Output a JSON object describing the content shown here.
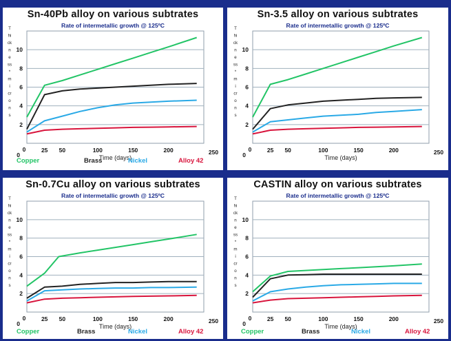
{
  "chart_data": [
    {
      "type": "line",
      "title": "Sn-40Pb alloy on various subtrates",
      "subtitle": "Rate of intermetallic growth @ 125ºC",
      "ylabel": "Thickness * microns",
      "xlabel": "Time (days)",
      "xlim": [
        0,
        250
      ],
      "ylim": [
        0,
        12
      ],
      "xticks": [
        "0",
        "25",
        "50",
        "100",
        "150",
        "200",
        "250"
      ],
      "yticks": [
        "0",
        "2",
        "4",
        "6",
        "8",
        "10"
      ],
      "grid": true,
      "series": [
        {
          "name": "Copper",
          "color": "#22c466",
          "x": [
            0,
            25,
            50,
            75,
            100,
            125,
            150,
            175,
            200,
            240
          ],
          "y": [
            2.8,
            6.2,
            6.7,
            7.3,
            7.9,
            8.5,
            9.1,
            9.7,
            10.3,
            11.3
          ]
        },
        {
          "name": "Brass",
          "color": "#222222",
          "x": [
            0,
            25,
            50,
            75,
            100,
            125,
            150,
            175,
            200,
            240
          ],
          "y": [
            1.5,
            5.2,
            5.6,
            5.8,
            5.9,
            6.0,
            6.1,
            6.2,
            6.3,
            6.4
          ]
        },
        {
          "name": "Nickel",
          "color": "#29a9e6",
          "x": [
            0,
            25,
            50,
            75,
            100,
            125,
            150,
            175,
            200,
            240
          ],
          "y": [
            1.2,
            2.4,
            2.9,
            3.4,
            3.8,
            4.1,
            4.3,
            4.4,
            4.5,
            4.6
          ]
        },
        {
          "name": "Alloy 42",
          "color": "#d8143c",
          "x": [
            0,
            25,
            50,
            75,
            100,
            125,
            150,
            175,
            200,
            240
          ],
          "y": [
            1.0,
            1.4,
            1.5,
            1.55,
            1.6,
            1.65,
            1.7,
            1.72,
            1.75,
            1.8
          ]
        }
      ]
    },
    {
      "type": "line",
      "title": "Sn-3.5 alloy on various subtrates",
      "subtitle": "Rate of intermetallic growth @ 125ºC",
      "ylabel": "Thickness * microns",
      "xlabel": "Time (days)",
      "xlim": [
        0,
        250
      ],
      "ylim": [
        0,
        12
      ],
      "xticks": [
        "0",
        "25",
        "50",
        "100",
        "150",
        "200",
        "250"
      ],
      "yticks": [
        "0",
        "2",
        "4",
        "6",
        "8",
        "10"
      ],
      "grid": true,
      "series": [
        {
          "name": "Copper",
          "color": "#22c466",
          "x": [
            0,
            25,
            50,
            75,
            100,
            125,
            150,
            175,
            200,
            240
          ],
          "y": [
            2.8,
            6.3,
            6.8,
            7.4,
            8.0,
            8.6,
            9.2,
            9.8,
            10.4,
            11.3
          ]
        },
        {
          "name": "Brass",
          "color": "#222222",
          "x": [
            0,
            25,
            50,
            75,
            100,
            125,
            150,
            175,
            200,
            240
          ],
          "y": [
            1.5,
            3.7,
            4.1,
            4.3,
            4.5,
            4.6,
            4.7,
            4.8,
            4.85,
            4.9
          ]
        },
        {
          "name": "Nickel",
          "color": "#29a9e6",
          "x": [
            0,
            25,
            50,
            75,
            100,
            125,
            150,
            175,
            200,
            240
          ],
          "y": [
            1.2,
            2.3,
            2.5,
            2.7,
            2.9,
            3.0,
            3.1,
            3.3,
            3.4,
            3.6
          ]
        },
        {
          "name": "Alloy 42",
          "color": "#d8143c",
          "x": [
            0,
            25,
            50,
            75,
            100,
            125,
            150,
            175,
            200,
            240
          ],
          "y": [
            1.0,
            1.4,
            1.5,
            1.55,
            1.6,
            1.65,
            1.7,
            1.72,
            1.75,
            1.8
          ]
        }
      ]
    },
    {
      "type": "line",
      "title": "Sn-0.7Cu alloy on various subtrates",
      "subtitle": "Rate of intermetallic growth @ 125ºC",
      "ylabel": "Thickness * microns",
      "xlabel": "Time (days)",
      "xlim": [
        0,
        250
      ],
      "ylim": [
        0,
        12
      ],
      "xticks": [
        "0",
        "25",
        "50",
        "100",
        "150",
        "200",
        "250"
      ],
      "yticks": [
        "0",
        "2",
        "4",
        "6",
        "8",
        "10"
      ],
      "grid": true,
      "series": [
        {
          "name": "Copper",
          "color": "#22c466",
          "x": [
            0,
            25,
            45,
            75,
            100,
            125,
            150,
            175,
            200,
            240
          ],
          "y": [
            2.8,
            4.2,
            6.0,
            6.4,
            6.7,
            7.0,
            7.3,
            7.6,
            7.9,
            8.4
          ]
        },
        {
          "name": "Brass",
          "color": "#222222",
          "x": [
            0,
            25,
            50,
            75,
            100,
            125,
            150,
            175,
            200,
            240
          ],
          "y": [
            1.5,
            2.7,
            2.8,
            3.0,
            3.1,
            3.2,
            3.2,
            3.25,
            3.3,
            3.3
          ]
        },
        {
          "name": "Nickel",
          "color": "#29a9e6",
          "x": [
            0,
            25,
            50,
            75,
            100,
            125,
            150,
            175,
            200,
            240
          ],
          "y": [
            1.2,
            2.3,
            2.4,
            2.5,
            2.55,
            2.6,
            2.6,
            2.65,
            2.65,
            2.7
          ]
        },
        {
          "name": "Alloy 42",
          "color": "#d8143c",
          "x": [
            0,
            25,
            50,
            75,
            100,
            125,
            150,
            175,
            200,
            240
          ],
          "y": [
            1.0,
            1.4,
            1.5,
            1.55,
            1.6,
            1.65,
            1.7,
            1.72,
            1.75,
            1.8
          ]
        }
      ]
    },
    {
      "type": "line",
      "title": "CASTIN alloy on various subtrates",
      "subtitle": "Rate of intermetallic growth @ 125ºC",
      "ylabel": "Thickness * microns",
      "xlabel": "Time (days)",
      "xlim": [
        0,
        250
      ],
      "ylim": [
        0,
        12
      ],
      "xticks": [
        "0",
        "25",
        "50",
        "100",
        "150",
        "200",
        "250"
      ],
      "yticks": [
        "0",
        "2",
        "4",
        "6",
        "8",
        "10"
      ],
      "grid": true,
      "series": [
        {
          "name": "Copper",
          "color": "#22c466",
          "x": [
            0,
            25,
            50,
            75,
            100,
            125,
            150,
            175,
            200,
            240
          ],
          "y": [
            2.2,
            3.9,
            4.4,
            4.5,
            4.6,
            4.7,
            4.8,
            4.9,
            5.0,
            5.2
          ]
        },
        {
          "name": "Brass",
          "color": "#222222",
          "x": [
            0,
            25,
            50,
            75,
            100,
            125,
            150,
            175,
            200,
            240
          ],
          "y": [
            1.6,
            3.6,
            4.0,
            4.05,
            4.1,
            4.1,
            4.1,
            4.1,
            4.1,
            4.1
          ]
        },
        {
          "name": "Nickel",
          "color": "#29a9e6",
          "x": [
            0,
            25,
            50,
            75,
            100,
            125,
            150,
            175,
            200,
            240
          ],
          "y": [
            1.2,
            2.2,
            2.5,
            2.7,
            2.85,
            2.95,
            3.0,
            3.05,
            3.1,
            3.1
          ]
        },
        {
          "name": "Alloy 42",
          "color": "#d8143c",
          "x": [
            0,
            25,
            50,
            75,
            100,
            125,
            150,
            175,
            200,
            240
          ],
          "y": [
            1.0,
            1.3,
            1.45,
            1.5,
            1.55,
            1.6,
            1.65,
            1.7,
            1.75,
            1.8
          ]
        }
      ]
    }
  ]
}
